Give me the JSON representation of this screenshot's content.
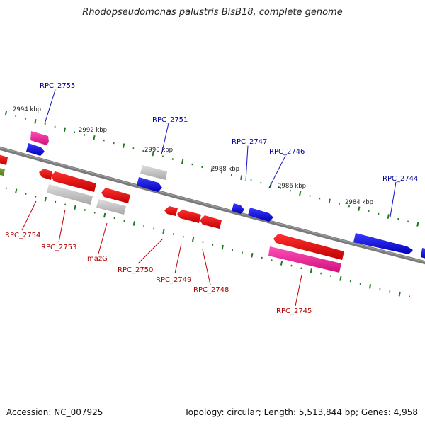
{
  "title": "Rhodopseudomonas palustris BisB18, complete genome",
  "footer": {
    "accession": "Accession: NC_007925",
    "summary": "Topology: circular; Length: 5,513,844 bp; Genes: 4,958"
  },
  "colors": {
    "forward_gene": "#1010e0",
    "reverse_gene": "#ee1111",
    "pseudo_gene": "#c4c4c4",
    "rna_gene": "#ee2299",
    "other_gene": "#669933",
    "tick": "#1f7a1f",
    "backbone": "#808080",
    "forward_label": "#00009c",
    "reverse_label": "#b00000"
  },
  "scale_labels": [
    "2994 kbp",
    "2992 kbp",
    "2990 kbp",
    "2988 kbp",
    "2986 kbp",
    "2984 kbp"
  ],
  "forward_labels": [
    "RPC_2755",
    "RPC_2751",
    "RPC_2747",
    "RPC_2746",
    "RPC_2744"
  ],
  "reverse_labels": [
    "RPC_2754",
    "RPC_2753",
    "mazG",
    "RPC_2750",
    "RPC_2749",
    "RPC_2748",
    "RPC_2745"
  ]
}
